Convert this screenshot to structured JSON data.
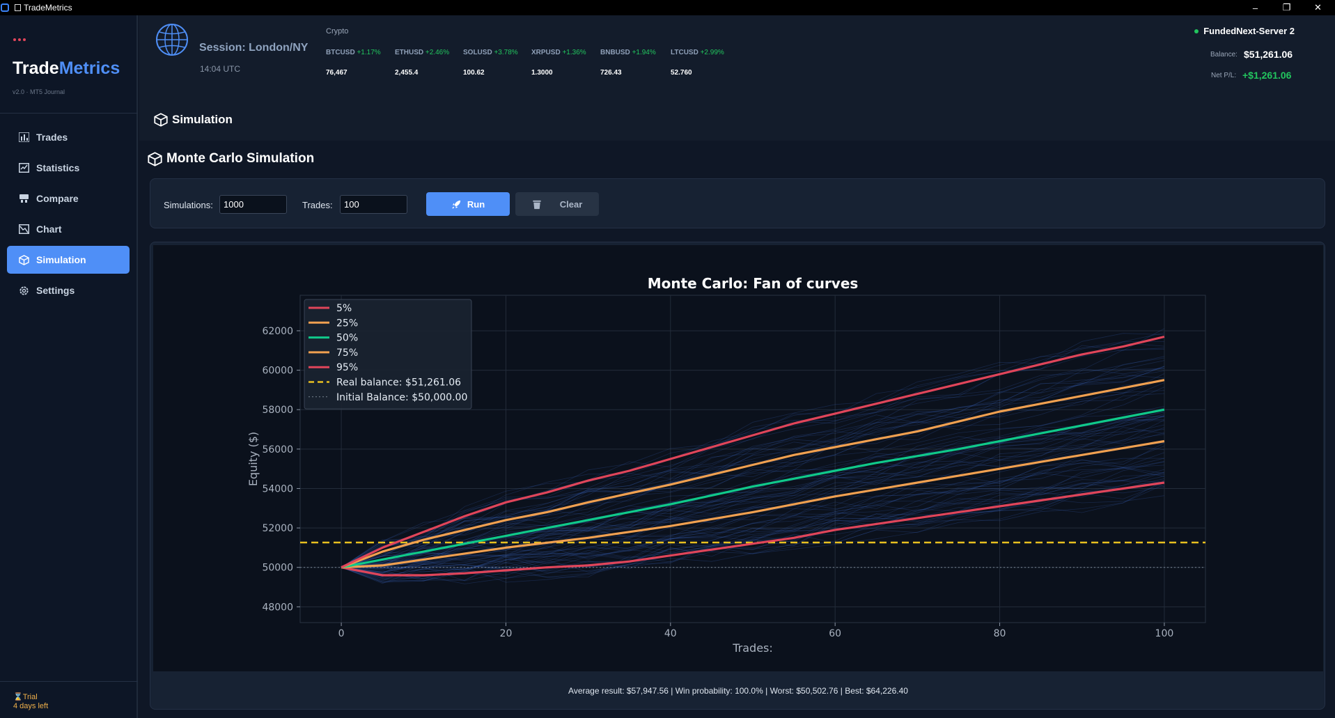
{
  "window": {
    "title": "TradeMetrics"
  },
  "sidebar": {
    "logo_part1": "Trade",
    "logo_part2": "Metrics",
    "version": "v2.0 · MT5 Journal",
    "items": [
      {
        "label": "Trades",
        "icon": "bar-chart-icon"
      },
      {
        "label": "Statistics",
        "icon": "checklist-icon"
      },
      {
        "label": "Compare",
        "icon": "compare-icon"
      },
      {
        "label": "Chart",
        "icon": "line-chart-icon"
      },
      {
        "label": "Simulation",
        "icon": "cube-icon",
        "active": true
      },
      {
        "label": "Settings",
        "icon": "gear-icon"
      }
    ],
    "trial_line1": "Trial",
    "trial_line2": "4 days left"
  },
  "header": {
    "session": "Session: London/NY",
    "time": "14:04 UTC",
    "crypto_label": "Crypto",
    "tickers": [
      {
        "symbol": "BTCUSD",
        "change": "+1.17%",
        "price": "76,467"
      },
      {
        "symbol": "ETHUSD",
        "change": "+2.46%",
        "price": "2,455.4"
      },
      {
        "symbol": "SOLUSD",
        "change": "+3.78%",
        "price": "100.62"
      },
      {
        "symbol": "XRPUSD",
        "change": "+1.36%",
        "price": "1.3000"
      },
      {
        "symbol": "BNBUSD",
        "change": "+1.94%",
        "price": "726.43"
      },
      {
        "symbol": "LTCUSD",
        "change": "+2.99%",
        "price": "52.760"
      }
    ],
    "server": "FundedNext-Server 2",
    "balance_label": "Balance:",
    "balance_value": "$51,261.06",
    "pl_label": "Net P/L:",
    "pl_value": "+$1,261.06"
  },
  "page": {
    "title": "Simulation",
    "section_title": "Monte Carlo Simulation",
    "simulations_label": "Simulations:",
    "simulations_value": "1000",
    "trades_label": "Trades:",
    "trades_value": "100",
    "run_label": "Run",
    "clear_label": "Clear"
  },
  "chart_data": {
    "type": "line",
    "title": "Monte Carlo: Fan of curves",
    "xlabel": "Trades:",
    "ylabel": "Equity ($)",
    "xlim": [
      -5,
      105
    ],
    "ylim": [
      47200,
      63800
    ],
    "xticks": [
      0,
      20,
      40,
      60,
      80,
      100
    ],
    "yticks": [
      48000,
      50000,
      52000,
      54000,
      56000,
      58000,
      60000,
      62000
    ],
    "grid": true,
    "legend_position": "top-left",
    "x": [
      0,
      5,
      10,
      15,
      20,
      25,
      30,
      35,
      40,
      45,
      50,
      55,
      60,
      65,
      70,
      75,
      80,
      85,
      90,
      95,
      100
    ],
    "series": [
      {
        "name": "5%",
        "color": "#e0455a",
        "values": [
          50000,
          49600,
          49600,
          49700,
          49850,
          50000,
          50100,
          50300,
          50600,
          50900,
          51200,
          51500,
          51900,
          52200,
          52500,
          52800,
          53100,
          53400,
          53700,
          54000,
          54300
        ]
      },
      {
        "name": "25%",
        "color": "#f0a050",
        "values": [
          50000,
          50100,
          50400,
          50700,
          51000,
          51250,
          51500,
          51800,
          52100,
          52450,
          52800,
          53200,
          53600,
          53950,
          54300,
          54650,
          55000,
          55350,
          55700,
          56050,
          56400
        ]
      },
      {
        "name": "50%",
        "color": "#10c98a",
        "values": [
          50000,
          50400,
          50800,
          51200,
          51600,
          52000,
          52400,
          52800,
          53200,
          53650,
          54100,
          54500,
          54900,
          55300,
          55650,
          56000,
          56400,
          56800,
          57200,
          57600,
          58000
        ]
      },
      {
        "name": "75%",
        "color": "#f0a050",
        "values": [
          50000,
          50800,
          51400,
          51900,
          52400,
          52800,
          53300,
          53750,
          54200,
          54700,
          55200,
          55700,
          56100,
          56500,
          56900,
          57400,
          57900,
          58300,
          58700,
          59100,
          59500
        ]
      },
      {
        "name": "95%",
        "color": "#e0455a",
        "values": [
          50000,
          51000,
          51800,
          52600,
          53300,
          53800,
          54400,
          54900,
          55500,
          56100,
          56700,
          57300,
          57800,
          58300,
          58800,
          59300,
          59800,
          60300,
          60800,
          61200,
          61700
        ]
      }
    ],
    "hlines": [
      {
        "name": "Real balance: $51,261.06",
        "value": 51261.06,
        "color": "#e8c020",
        "style": "dashed"
      },
      {
        "name": "Initial Balance: $50,000.00",
        "value": 50000,
        "color": "#7b8594",
        "style": "dotted"
      }
    ]
  },
  "stats": {
    "text": "Average result: $57,947.56  |  Win probability: 100.0%  |  Worst: $50,502.76  |  Best: $64,226.40"
  }
}
